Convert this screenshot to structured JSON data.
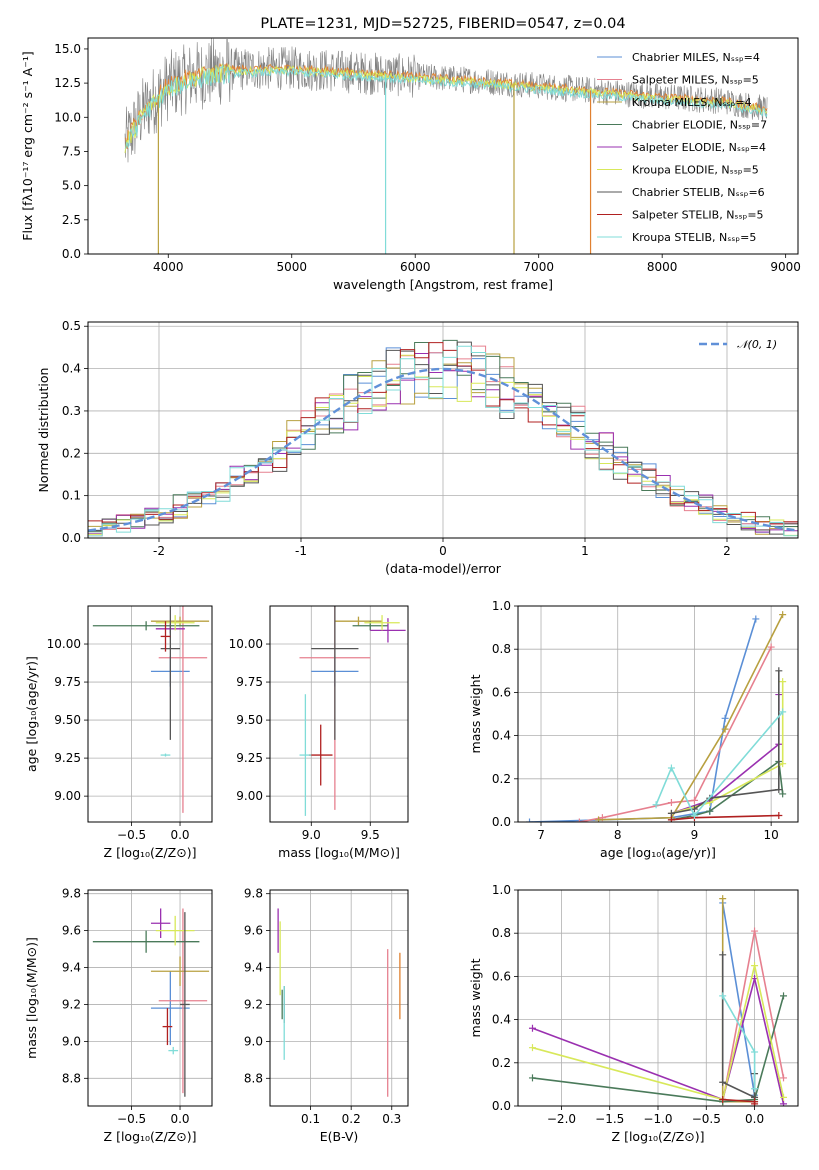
{
  "colors": {
    "chabrier_miles": "#5b8fd6",
    "salpeter_miles": "#e6808f",
    "kroupa_miles": "#b8a040",
    "chabrier_elodie": "#4a7a5a",
    "salpeter_elodie": "#9a30b0",
    "kroupa_elodie": "#d8e85a",
    "chabrier_stelib": "#555555",
    "salpeter_stelib": "#b02020",
    "kroupa_stelib": "#80dcd8",
    "orange": "#e08030",
    "grey": "#808080",
    "gauss": "#6090d8"
  },
  "chart_data": [
    {
      "id": "spectrum",
      "type": "line",
      "title": "PLATE=1231, MJD=52725, FIBERID=0547, z=0.04",
      "xlabel": "wavelength [Angstrom, rest frame]",
      "ylabel": "Flux [fλ10⁻¹⁷ erg cm⁻² s⁻¹ A⁻¹]",
      "xlim": [
        3350,
        9100
      ],
      "ylim": [
        0,
        15.8
      ],
      "xticks": [
        4000,
        5000,
        6000,
        7000,
        8000,
        9000
      ],
      "yticks": [
        0.0,
        2.5,
        5.0,
        7.5,
        10.0,
        12.5,
        15.0
      ],
      "legend_position": "top-right",
      "grid": false,
      "legend": [
        "Chabrier MILES, Nₛₛₚ=4",
        "Salpeter MILES, Nₛₛₚ=5",
        "Kroupa MILES, Nₛₛₚ=4",
        "Chabrier ELODIE, Nₛₛₚ=7",
        "Salpeter ELODIE, Nₛₛₚ=4",
        "Kroupa ELODIE, Nₛₛₚ=5",
        "Chabrier STELIB, Nₛₛₚ=6",
        "Salpeter STELIB, Nₛₛₚ=5",
        "Kroupa STELIB, Nₛₛₚ=5"
      ],
      "continuum": {
        "x": [
          3650,
          3800,
          4000,
          4200,
          4500,
          5000,
          5500,
          6000,
          6500,
          7000,
          7500,
          8000,
          8500,
          8850
        ],
        "y": [
          8.0,
          10.5,
          12.3,
          13.0,
          13.5,
          13.6,
          13.3,
          13.0,
          12.7,
          12.3,
          11.9,
          11.5,
          11.2,
          10.6
        ]
      },
      "dips": [
        {
          "x": 3920,
          "y": 0.0,
          "series": "kroupa_miles"
        },
        {
          "x": 5760,
          "y": 0.0,
          "series": "kroupa_stelib"
        },
        {
          "x": 6800,
          "y": 0.0,
          "series": "kroupa_miles"
        },
        {
          "x": 7420,
          "y": 0.0,
          "series": "orange"
        }
      ]
    },
    {
      "id": "residuals",
      "type": "histogram",
      "xlabel": "(data-model)/error",
      "ylabel": "Normed distribution",
      "xlim": [
        -2.5,
        2.5
      ],
      "ylim": [
        0,
        0.51
      ],
      "xticks": [
        -2,
        -1,
        0,
        1,
        2
      ],
      "yticks": [
        0.0,
        0.1,
        0.2,
        0.3,
        0.4,
        0.5
      ],
      "grid": true,
      "legend_position": "top-right",
      "gauss_label": "𝒩(0, 1)",
      "bin_width": 0.1
    },
    {
      "id": "age_vs_Z",
      "type": "errorbar",
      "xlabel": "Z [log₁₀(Z/Z⊙)]",
      "ylabel": "age  [log₁₀(age/yr)]",
      "xlim": [
        -0.95,
        0.33
      ],
      "ylim": [
        8.83,
        10.25
      ],
      "xticks": [
        -0.5,
        0.0
      ],
      "xticklabels": [
        "−0.5",
        "0.0"
      ],
      "yticks": [
        9.0,
        9.25,
        9.5,
        9.75,
        10.0
      ],
      "yticklabels": [
        "9.00",
        "9.25",
        "9.50",
        "9.75",
        "10.00"
      ],
      "grid": true,
      "points": [
        {
          "series": "chabrier_miles",
          "x": -0.1,
          "xerr": 0.2,
          "y": 9.82,
          "yerr": 0.1
        },
        {
          "series": "salpeter_miles",
          "x": 0.03,
          "xerr": 0.25,
          "y": 9.91,
          "yerr": 1.02
        },
        {
          "series": "kroupa_miles",
          "x": 0.0,
          "xerr": 0.3,
          "y": 10.15,
          "yerr": 0.03
        },
        {
          "series": "chabrier_elodie",
          "x": -0.35,
          "xerr": 0.55,
          "y": 10.12,
          "yerr": 0.03
        },
        {
          "series": "salpeter_elodie",
          "x": -0.1,
          "xerr": 0.15,
          "y": 10.1,
          "yerr": 0.03
        },
        {
          "series": "kroupa_elodie",
          "x": -0.05,
          "xerr": 0.2,
          "y": 10.14,
          "yerr": 0.05
        },
        {
          "series": "chabrier_stelib",
          "x": -0.1,
          "xerr": 0.1,
          "y": 9.97,
          "yerr": 0.6
        },
        {
          "series": "salpeter_stelib",
          "x": -0.15,
          "xerr": 0.05,
          "y": 10.05,
          "yerr": 0.1
        },
        {
          "series": "kroupa_stelib",
          "x": -0.15,
          "xerr": 0.05,
          "y": 9.27,
          "yerr": 0.01
        }
      ]
    },
    {
      "id": "age_vs_mass",
      "type": "errorbar",
      "xlabel": "mass [log₁₀(M/M⊙)]",
      "ylabel": "",
      "xlim": [
        8.65,
        9.82
      ],
      "ylim": [
        8.83,
        10.25
      ],
      "xticks": [
        9.0,
        9.5
      ],
      "xticklabels": [
        "9.0",
        "9.5"
      ],
      "yticks": [
        9.0,
        9.25,
        9.5,
        9.75,
        10.0
      ],
      "yticklabels": [
        "9.00",
        "9.25",
        "9.50",
        "9.75",
        "10.00"
      ],
      "grid": true,
      "points": [
        {
          "series": "chabrier_miles",
          "x": 9.2,
          "xerr": 0.2,
          "y": 9.82,
          "yerr": 0.1
        },
        {
          "series": "salpeter_miles",
          "x": 9.2,
          "xerr": 0.3,
          "y": 9.91,
          "yerr": 1.0
        },
        {
          "series": "kroupa_miles",
          "x": 9.4,
          "xerr": 0.2,
          "y": 10.15,
          "yerr": 0.03
        },
        {
          "series": "chabrier_elodie",
          "x": 9.5,
          "xerr": 0.15,
          "y": 10.12,
          "yerr": 0.03
        },
        {
          "series": "salpeter_elodie",
          "x": 9.65,
          "xerr": 0.15,
          "y": 10.09,
          "yerr": 0.08
        },
        {
          "series": "kroupa_elodie",
          "x": 9.6,
          "xerr": 0.15,
          "y": 10.14,
          "yerr": 0.05
        },
        {
          "series": "chabrier_stelib",
          "x": 9.2,
          "xerr": 0.2,
          "y": 9.97,
          "yerr": 0.6
        },
        {
          "series": "salpeter_stelib",
          "x": 9.08,
          "xerr": 0.1,
          "y": 9.27,
          "yerr": 0.2
        },
        {
          "series": "kroupa_stelib",
          "x": 8.95,
          "xerr": 0.05,
          "y": 9.27,
          "yerr": 0.4
        }
      ]
    },
    {
      "id": "weight_vs_age",
      "type": "line",
      "xlabel": "age  [log₁₀(age/yr)]",
      "ylabel": "mass weight",
      "xlim": [
        6.7,
        10.35
      ],
      "ylim": [
        0,
        1
      ],
      "xticks": [
        7,
        8,
        9,
        10
      ],
      "yticks": [
        0.0,
        0.2,
        0.4,
        0.6,
        0.8,
        1.0
      ],
      "grid": true,
      "series": [
        {
          "series": "chabrier_miles",
          "x": [
            6.85,
            8.7,
            9.2,
            9.4,
            9.8
          ],
          "y": [
            0.0,
            0.02,
            0.05,
            0.48,
            0.94
          ]
        },
        {
          "series": "salpeter_miles",
          "x": [
            7.5,
            7.8,
            8.7,
            9.0,
            10.0
          ],
          "y": [
            0.0,
            0.02,
            0.09,
            0.1,
            0.81
          ]
        },
        {
          "series": "kroupa_miles",
          "x": [
            7.75,
            8.7,
            9.4,
            10.15
          ],
          "y": [
            0.01,
            0.02,
            0.43,
            0.96
          ]
        },
        {
          "series": "chabrier_elodie",
          "x": [
            8.7,
            9.0,
            9.2,
            10.1,
            10.15
          ],
          "y": [
            0.01,
            0.03,
            0.05,
            0.28,
            0.13
          ]
        },
        {
          "series": "salpeter_elodie",
          "x": [
            8.7,
            9.2,
            10.1,
            10.1
          ],
          "y": [
            0.04,
            0.1,
            0.36,
            0.59
          ]
        },
        {
          "series": "kroupa_elodie",
          "x": [
            8.7,
            9.2,
            10.15,
            10.15
          ],
          "y": [
            0.04,
            0.09,
            0.27,
            0.65
          ]
        },
        {
          "series": "chabrier_stelib",
          "x": [
            8.7,
            9.0,
            9.2,
            10.1,
            10.1
          ],
          "y": [
            0.04,
            0.06,
            0.11,
            0.15,
            0.7
          ]
        },
        {
          "series": "salpeter_stelib",
          "x": [
            8.7,
            9.0,
            10.1
          ],
          "y": [
            0.01,
            0.02,
            0.03
          ]
        },
        {
          "series": "kroupa_stelib",
          "x": [
            8.5,
            8.7,
            9.0,
            10.15
          ],
          "y": [
            0.08,
            0.25,
            0.03,
            0.51
          ]
        }
      ]
    },
    {
      "id": "mass_vs_Z",
      "type": "errorbar",
      "xlabel": "Z [log₁₀(Z/Z⊙)]",
      "ylabel": "mass [log₁₀(M/M⊙)]",
      "xlim": [
        -0.95,
        0.33
      ],
      "ylim": [
        8.65,
        9.82
      ],
      "xticks": [
        -0.5,
        0.0
      ],
      "xticklabels": [
        "−0.5",
        "0.0"
      ],
      "yticks": [
        8.8,
        9.0,
        9.2,
        9.4,
        9.6,
        9.8
      ],
      "yticklabels": [
        "8.8",
        "9.0",
        "9.2",
        "9.4",
        "9.6",
        "9.8"
      ],
      "grid": true,
      "points": [
        {
          "series": "chabrier_miles",
          "x": -0.1,
          "xerr": 0.2,
          "y": 9.18,
          "yerr": 0.2
        },
        {
          "series": "salpeter_miles",
          "x": 0.03,
          "xerr": 0.25,
          "y": 9.22,
          "yerr": 0.5
        },
        {
          "series": "kroupa_miles",
          "x": 0.0,
          "xerr": 0.3,
          "y": 9.38,
          "yerr": 0.08
        },
        {
          "series": "chabrier_elodie",
          "x": -0.35,
          "xerr": 0.55,
          "y": 9.54,
          "yerr": 0.06
        },
        {
          "series": "salpeter_elodie",
          "x": -0.2,
          "xerr": 0.1,
          "y": 9.64,
          "yerr": 0.08
        },
        {
          "series": "kroupa_elodie",
          "x": -0.05,
          "xerr": 0.2,
          "y": 9.6,
          "yerr": 0.08
        },
        {
          "series": "chabrier_stelib",
          "x": 0.05,
          "xerr": 0.05,
          "y": 9.2,
          "yerr": 0.5
        },
        {
          "series": "salpeter_stelib",
          "x": -0.13,
          "xerr": 0.05,
          "y": 9.08,
          "yerr": 0.1
        },
        {
          "series": "kroupa_stelib",
          "x": -0.07,
          "xerr": 0.05,
          "y": 8.95,
          "yerr": 0.02
        }
      ]
    },
    {
      "id": "mass_vs_ebv",
      "type": "errorbar",
      "xlabel": "E(B-V)",
      "ylabel": "",
      "xlim": [
        0.0,
        0.34
      ],
      "ylim": [
        8.65,
        9.82
      ],
      "xticks": [
        0.1,
        0.2,
        0.3
      ],
      "xticklabels": [
        "0.1",
        "0.2",
        "0.3"
      ],
      "yticks": [
        8.8,
        9.0,
        9.2,
        9.4,
        9.6,
        9.8
      ],
      "yticklabels": [
        "8.8",
        "9.0",
        "9.2",
        "9.4",
        "9.6",
        "9.8"
      ],
      "grid": true,
      "points": [
        {
          "series": "salpeter_elodie",
          "x": 0.02,
          "xerr": 0.0,
          "y": 9.6,
          "yerr": 0.12
        },
        {
          "series": "kroupa_elodie",
          "x": 0.025,
          "xerr": 0.0,
          "y": 9.45,
          "yerr": 0.2
        },
        {
          "series": "chabrier_elodie",
          "x": 0.03,
          "xerr": 0.0,
          "y": 9.2,
          "yerr": 0.08
        },
        {
          "series": "chabrier_stelib",
          "x": 0.035,
          "xerr": 0.0,
          "y": 9.2,
          "yerr": 0.1
        },
        {
          "series": "kroupa_stelib",
          "x": 0.035,
          "xerr": 0.0,
          "y": 9.1,
          "yerr": 0.2
        },
        {
          "series": "salpeter_miles",
          "x": 0.29,
          "xerr": 0.0,
          "y": 9.1,
          "yerr": 0.4
        },
        {
          "series": "orange",
          "x": 0.32,
          "xerr": 0.0,
          "y": 9.3,
          "yerr": 0.18
        }
      ]
    },
    {
      "id": "weight_vs_Z",
      "type": "line",
      "xlabel": "Z [log₁₀(Z/Z⊙)]",
      "ylabel": "mass weight",
      "xlim": [
        -2.45,
        0.45
      ],
      "ylim": [
        0,
        1
      ],
      "xticks": [
        -2.0,
        -1.5,
        -1.0,
        -0.5,
        0.0
      ],
      "xticklabels": [
        "−2.0",
        "−1.5",
        "−1.0",
        "−0.5",
        "0.0"
      ],
      "yticks": [
        0.0,
        0.2,
        0.4,
        0.6,
        0.8,
        1.0
      ],
      "grid": true,
      "series": [
        {
          "series": "chabrier_miles",
          "x": [
            -0.33,
            0.0,
            0.0
          ],
          "y": [
            0.94,
            0.05,
            0.02
          ]
        },
        {
          "series": "salpeter_miles",
          "x": [
            -0.33,
            0.0,
            0.3
          ],
          "y": [
            0.02,
            0.81,
            0.13
          ]
        },
        {
          "series": "kroupa_miles",
          "x": [
            -0.33,
            -0.33,
            0.0
          ],
          "y": [
            0.96,
            0.02,
            0.02
          ]
        },
        {
          "series": "chabrier_elodie",
          "x": [
            -2.3,
            -0.33,
            0.0,
            0.3
          ],
          "y": [
            0.13,
            0.02,
            0.03,
            0.51
          ]
        },
        {
          "series": "salpeter_elodie",
          "x": [
            -2.3,
            -0.33,
            0.0,
            0.3
          ],
          "y": [
            0.36,
            0.03,
            0.59,
            0.01
          ]
        },
        {
          "series": "kroupa_elodie",
          "x": [
            -2.3,
            -0.33,
            0.0,
            0.3
          ],
          "y": [
            0.27,
            0.03,
            0.65,
            0.04
          ]
        },
        {
          "series": "chabrier_stelib",
          "x": [
            -0.33,
            -0.33,
            0.0,
            0.0
          ],
          "y": [
            0.7,
            0.11,
            0.04,
            0.15
          ]
        },
        {
          "series": "salpeter_stelib",
          "x": [
            -0.33,
            0.0,
            0.0
          ],
          "y": [
            0.03,
            0.02,
            0.01
          ]
        },
        {
          "series": "kroupa_stelib",
          "x": [
            -0.33,
            0.0,
            0.0
          ],
          "y": [
            0.51,
            0.25,
            0.08
          ]
        }
      ]
    }
  ]
}
